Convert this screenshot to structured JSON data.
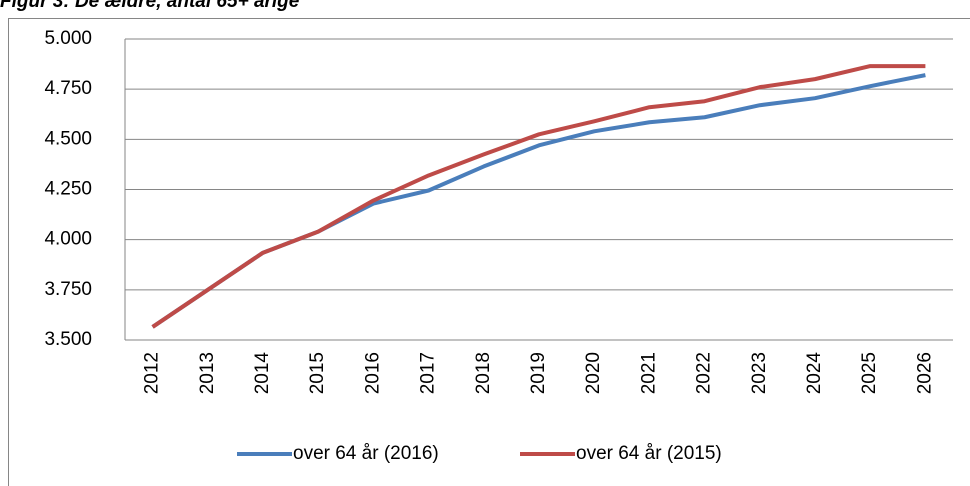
{
  "chart_data": {
    "type": "line",
    "title": "Figur 3: De ældre, antal 65+ årige",
    "categories": [
      "2012",
      "2013",
      "2014",
      "2015",
      "2016",
      "2017",
      "2018",
      "2019",
      "2020",
      "2021",
      "2022",
      "2023",
      "2024",
      "2025",
      "2026"
    ],
    "series": [
      {
        "name": "over 64 år (2016)",
        "color": "#4a7ebb",
        "values": [
          3565,
          3750,
          3935,
          4040,
          4180,
          4245,
          4365,
          4470,
          4540,
          4585,
          4610,
          4670,
          4705,
          4765,
          4820
        ]
      },
      {
        "name": "over 64 år (2015)",
        "color": "#be4b48",
        "values": [
          3565,
          3750,
          3935,
          4040,
          4195,
          4320,
          4425,
          4525,
          4590,
          4660,
          4690,
          4760,
          4800,
          4865,
          4865
        ]
      }
    ],
    "ylim": [
      3500,
      5000
    ],
    "yticks": [
      {
        "value": 3500,
        "label": "3.500"
      },
      {
        "value": 3750,
        "label": "3.750"
      },
      {
        "value": 4000,
        "label": "4.000"
      },
      {
        "value": 4250,
        "label": "4.250"
      },
      {
        "value": 4500,
        "label": "4.500"
      },
      {
        "value": 4750,
        "label": "4.750"
      },
      {
        "value": 5000,
        "label": "5.000"
      }
    ],
    "grid": true
  }
}
